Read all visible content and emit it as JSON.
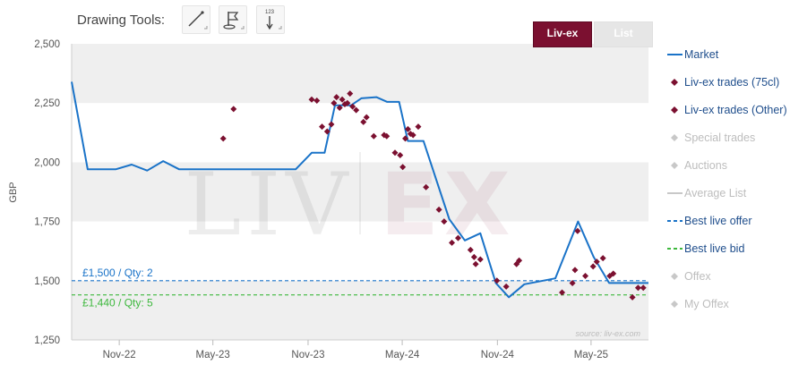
{
  "toolbar": {
    "label": "Drawing Tools:",
    "tools": [
      {
        "name": "trend-line",
        "icon": "line-draw-icon"
      },
      {
        "name": "flag",
        "icon": "flag-icon"
      },
      {
        "name": "price-marker",
        "icon": "price-marker-icon",
        "glyph": "123"
      }
    ]
  },
  "tabs": [
    {
      "label": "Liv-ex",
      "active": true
    },
    {
      "label": "List",
      "active": false
    }
  ],
  "watermark": {
    "left": "LIV",
    "right": "EX"
  },
  "source": "source: liv-ex.com",
  "colors": {
    "market": "#1a73c8",
    "trade": "#7b1030",
    "inactive": "#c8c8c8",
    "offer": "#1a73c8",
    "bid": "#3db83d",
    "band": "#efefef"
  },
  "legend": [
    {
      "label": "Market",
      "type": "line",
      "color": "#1a73c8",
      "active": true
    },
    {
      "label": "Liv-ex trades (75cl)",
      "type": "diamond",
      "color": "#7b1030",
      "active": true
    },
    {
      "label": "Liv-ex trades (Other)",
      "type": "diamond",
      "color": "#7b1030",
      "active": true
    },
    {
      "label": "Special trades",
      "type": "diamond",
      "color": "#c8c8c8",
      "active": false
    },
    {
      "label": "Auctions",
      "type": "diamond",
      "color": "#c8c8c8",
      "active": false
    },
    {
      "label": "Average List",
      "type": "line",
      "color": "#c8c8c8",
      "active": false
    },
    {
      "label": "Best live offer",
      "type": "dash",
      "color": "#1a73c8",
      "active": true
    },
    {
      "label": "Best live bid",
      "type": "dash",
      "color": "#3db83d",
      "active": true
    },
    {
      "label": "Offex",
      "type": "diamond",
      "color": "#c8c8c8",
      "active": false
    },
    {
      "label": "My Offex",
      "type": "diamond",
      "color": "#c8c8c8",
      "active": false
    }
  ],
  "chart_data": {
    "type": "line",
    "ylabel": "GBP",
    "xlabel": "",
    "ylim": [
      1250,
      2500
    ],
    "yticks": [
      1250,
      1500,
      1750,
      2000,
      2250,
      2500
    ],
    "ytick_labels": [
      "1,250",
      "1,500",
      "1,750",
      "2,000",
      "2,250",
      "2,500"
    ],
    "xlim": [
      "2022-08-01",
      "2025-08-20"
    ],
    "xticks": [
      {
        "date": "2022-11-01",
        "label": "Nov-22"
      },
      {
        "date": "2023-05-01",
        "label": "May-23"
      },
      {
        "date": "2023-11-01",
        "label": "Nov-23"
      },
      {
        "date": "2024-05-01",
        "label": "May-24"
      },
      {
        "date": "2024-11-01",
        "label": "Nov-24"
      },
      {
        "date": "2025-05-01",
        "label": "May-25"
      }
    ],
    "grid": "alternating-bands",
    "legend_position": "right",
    "series": [
      {
        "name": "Market",
        "kind": "line",
        "points": [
          [
            "2022-08-01",
            2340
          ],
          [
            "2022-09-01",
            1970
          ],
          [
            "2022-10-25",
            1970
          ],
          [
            "2022-11-25",
            1990
          ],
          [
            "2022-12-25",
            1965
          ],
          [
            "2023-01-25",
            2005
          ],
          [
            "2023-02-25",
            1970
          ],
          [
            "2023-10-08",
            1970
          ],
          [
            "2023-11-08",
            2040
          ],
          [
            "2023-12-03",
            2040
          ],
          [
            "2023-12-23",
            2240
          ],
          [
            "2024-01-23",
            2240
          ],
          [
            "2024-02-12",
            2270
          ],
          [
            "2024-03-12",
            2275
          ],
          [
            "2024-04-02",
            2255
          ],
          [
            "2024-04-25",
            2255
          ],
          [
            "2024-05-12",
            2090
          ],
          [
            "2024-06-11",
            2090
          ],
          [
            "2024-07-31",
            1760
          ],
          [
            "2024-08-30",
            1670
          ],
          [
            "2024-09-29",
            1700
          ],
          [
            "2024-10-29",
            1490
          ],
          [
            "2024-11-23",
            1430
          ],
          [
            "2024-12-23",
            1485
          ],
          [
            "2025-02-21",
            1510
          ],
          [
            "2025-04-06",
            1750
          ],
          [
            "2025-05-06",
            1600
          ],
          [
            "2025-06-05",
            1490
          ],
          [
            "2025-08-20",
            1490
          ]
        ]
      },
      {
        "name": "Liv-ex trades (75cl)",
        "kind": "scatter",
        "points": [
          [
            "2023-05-21",
            2100
          ],
          [
            "2023-06-10",
            2225
          ],
          [
            "2023-11-08",
            2265
          ],
          [
            "2023-11-18",
            2260
          ],
          [
            "2023-11-28",
            2150
          ],
          [
            "2023-12-08",
            2130
          ],
          [
            "2023-12-16",
            2160
          ],
          [
            "2023-12-21",
            2250
          ],
          [
            "2023-12-26",
            2275
          ],
          [
            "2024-01-01",
            2230
          ],
          [
            "2024-01-06",
            2265
          ],
          [
            "2024-01-11",
            2245
          ],
          [
            "2024-01-16",
            2250
          ],
          [
            "2024-01-21",
            2290
          ],
          [
            "2024-01-26",
            2235
          ],
          [
            "2024-02-02",
            2220
          ],
          [
            "2024-02-16",
            2170
          ],
          [
            "2024-02-22",
            2190
          ],
          [
            "2024-03-07",
            2110
          ],
          [
            "2024-03-27",
            2115
          ],
          [
            "2024-04-01",
            2110
          ],
          [
            "2024-04-17",
            2040
          ],
          [
            "2024-04-27",
            2030
          ],
          [
            "2024-05-02",
            1980
          ],
          [
            "2024-05-07",
            2100
          ],
          [
            "2024-05-12",
            2140
          ],
          [
            "2024-05-17",
            2120
          ],
          [
            "2024-05-22",
            2115
          ],
          [
            "2024-06-01",
            2150
          ],
          [
            "2024-06-16",
            1895
          ],
          [
            "2024-07-11",
            1800
          ],
          [
            "2024-07-21",
            1750
          ],
          [
            "2024-08-05",
            1660
          ],
          [
            "2024-08-17",
            1680
          ],
          [
            "2024-09-10",
            1630
          ],
          [
            "2024-09-17",
            1600
          ],
          [
            "2024-09-20",
            1570
          ],
          [
            "2024-09-29",
            1590
          ],
          [
            "2024-10-31",
            1500
          ],
          [
            "2024-11-18",
            1475
          ],
          [
            "2024-12-08",
            1570
          ],
          [
            "2024-12-13",
            1585
          ],
          [
            "2025-03-06",
            1450
          ],
          [
            "2025-03-26",
            1490
          ],
          [
            "2025-03-31",
            1545
          ],
          [
            "2025-04-05",
            1710
          ],
          [
            "2025-04-20",
            1520
          ],
          [
            "2025-05-05",
            1560
          ],
          [
            "2025-05-12",
            1580
          ],
          [
            "2025-05-24",
            1595
          ],
          [
            "2025-06-06",
            1520
          ],
          [
            "2025-06-13",
            1530
          ],
          [
            "2025-07-20",
            1430
          ],
          [
            "2025-07-31",
            1470
          ],
          [
            "2025-08-10",
            1470
          ]
        ]
      },
      {
        "name": "Best live offer",
        "kind": "hline",
        "value": 1500,
        "label": "£1,500 / Qty: 2"
      },
      {
        "name": "Best live bid",
        "kind": "hline",
        "value": 1440,
        "label": "£1,440 / Qty: 5"
      }
    ]
  }
}
